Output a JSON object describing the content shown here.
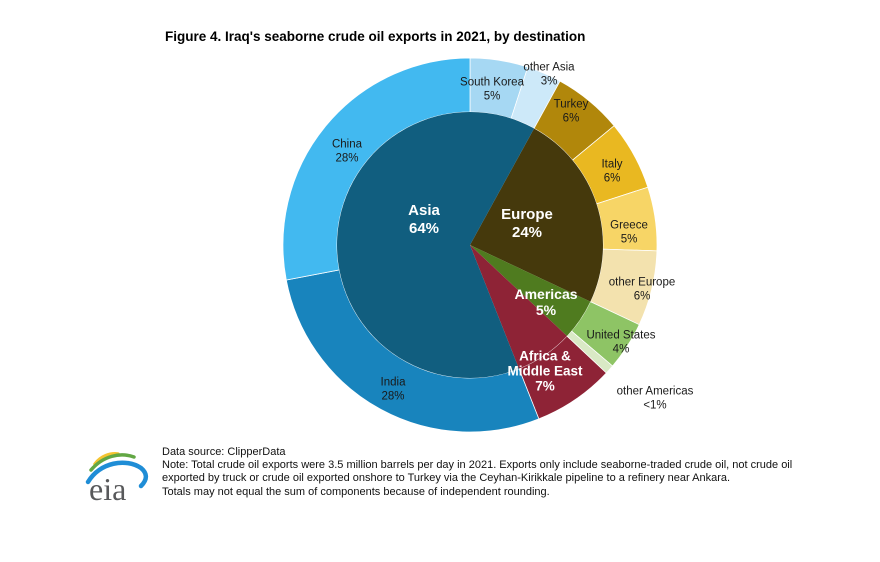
{
  "title": "Figure 4. Iraq's seaborne crude oil exports in 2021, by destination",
  "chart_data": {
    "type": "pie",
    "variant": "nested-donut",
    "title": "Figure 4. Iraq's seaborne crude oil exports in 2021, by destination",
    "units": "percent of total seaborne crude oil exports",
    "inner": [
      {
        "name": "Europe",
        "value": 24,
        "start": 8,
        "sweep": 24,
        "color": "#45390c",
        "label": "Europe\n24%"
      },
      {
        "name": "Americas",
        "value": 5,
        "start": 32,
        "sweep": 5,
        "color": "#4f7b1f",
        "label": "Americas\n5%"
      },
      {
        "name": "Africa & Middle East",
        "value": 7,
        "start": 37,
        "sweep": 7,
        "color": "#8e2336",
        "label": "Africa &\nMiddle East\n7%"
      },
      {
        "name": "Asia",
        "value": 64,
        "start": 44,
        "sweep": 64,
        "color": "#115e7f",
        "label": "Asia\n64%"
      }
    ],
    "outer": [
      {
        "name": "South Korea",
        "value": 5,
        "sweep": 5,
        "color": "#a6d8f3",
        "label": "South Korea\n5%"
      },
      {
        "name": "other Asia",
        "value": 3,
        "sweep": 3,
        "color": "#cde9f9",
        "label": "other Asia\n3%"
      },
      {
        "name": "Turkey",
        "value": 6,
        "sweep": 6,
        "color": "#b1870b",
        "label": "Turkey\n6%"
      },
      {
        "name": "Italy",
        "value": 6,
        "sweep": 6,
        "color": "#e9b821",
        "label": "Italy\n6%"
      },
      {
        "name": "Greece",
        "value": 5,
        "sweep": 5.5,
        "color": "#f7d566",
        "label": "Greece\n5%"
      },
      {
        "name": "other Europe",
        "value": 6,
        "sweep": 6.5,
        "color": "#f3e2ae",
        "label": "other Europe\n6%"
      },
      {
        "name": "United States",
        "value": 4,
        "sweep": 4.2,
        "color": "#8ec465",
        "label": "United States\n4%"
      },
      {
        "name": "other Americas",
        "value": "<1",
        "sweep": 0.8,
        "color": "#d9e9c5",
        "label": "other Americas\n<1%"
      },
      {
        "name": "Africa & Middle East",
        "value": 7,
        "sweep": 7,
        "color": "#8e2336",
        "label": ""
      },
      {
        "name": "India",
        "value": 28,
        "sweep": 28,
        "color": "#1884bd",
        "label": "India\n28%"
      },
      {
        "name": "China",
        "value": 28,
        "sweep": 28,
        "color": "#42b9f0",
        "label": "China\n28%"
      }
    ]
  },
  "footer": {
    "logo_text": "eia",
    "source": "Data source: ClipperData",
    "note": "Note: Total crude oil exports were 3.5 million barrels per day in 2021. Exports only include seaborne-traded crude oil, not crude oil\nexported by truck or crude oil exported onshore to Turkey via the Ceyhan-Kirikkale pipeline to a refinery near Ankara.\nTotals may not equal the sum of components because of independent rounding."
  }
}
